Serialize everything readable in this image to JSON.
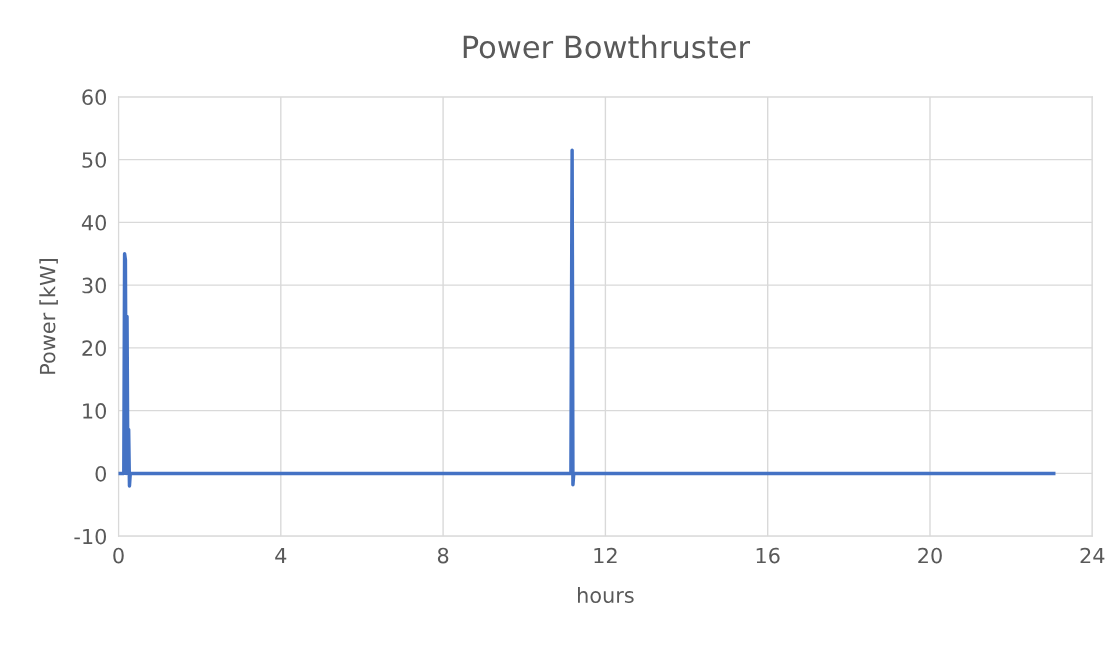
{
  "chart_data": {
    "type": "line",
    "title": "Power Bowthruster",
    "xlabel": "hours",
    "ylabel": "Power [kW]",
    "x": [
      0,
      0.13,
      0.15,
      0.17,
      0.19,
      0.21,
      0.23,
      0.25,
      0.27,
      0.29,
      0.31,
      11.15,
      11.18,
      11.2,
      11.22,
      11.25,
      23.05
    ],
    "series": [
      {
        "color": "#4472c4",
        "values": [
          0,
          0,
          35,
          34,
          0,
          25,
          0,
          7,
          -2,
          0,
          0,
          0,
          51.5,
          -1.8,
          0,
          0,
          0
        ]
      }
    ],
    "xlim": [
      0,
      24
    ],
    "xticks": [
      0,
      4,
      8,
      12,
      16,
      20,
      24
    ],
    "ylim": [
      -10,
      60
    ],
    "yticks": [
      -10,
      0,
      10,
      20,
      30,
      40,
      50,
      60
    ],
    "grid": true,
    "marker": "none",
    "line_style": "solid"
  }
}
